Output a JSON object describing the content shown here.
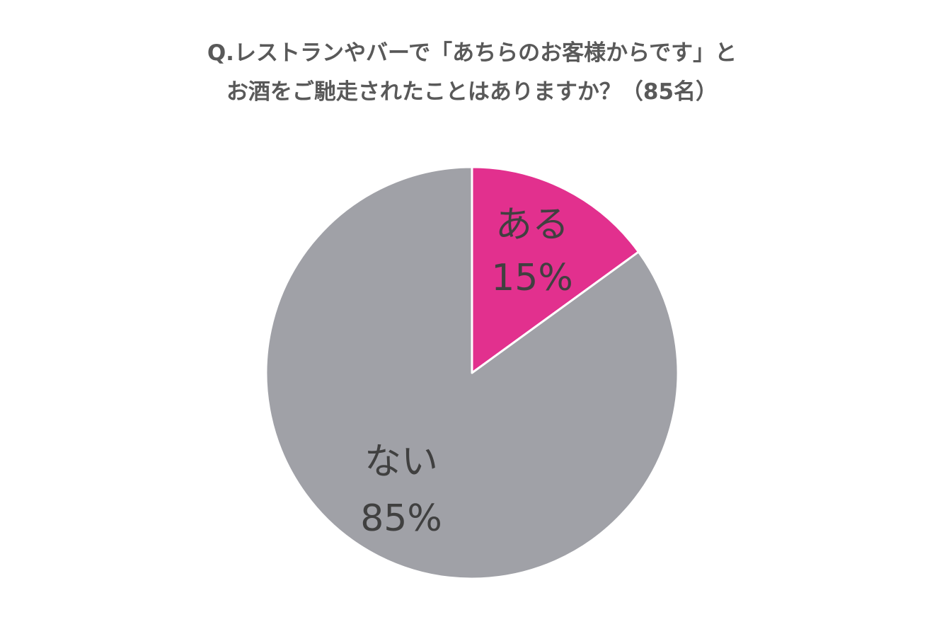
{
  "chart_data": {
    "type": "pie",
    "title": "Q.レストランやバーで「あちらのお客様からです」とお酒をご馳走されたことはありますか？（85名）",
    "title_lines": [
      "Q.レストランやバーで「あちらのお客様からです」と",
      "お酒をご馳走されたことはありますか？（85名）"
    ],
    "slices": [
      {
        "label": "ある",
        "value": 15,
        "value_label": "15%",
        "color": "#E2308E"
      },
      {
        "label": "ない",
        "value": 85,
        "value_label": "85%",
        "color": "#A0A1A7"
      }
    ],
    "legend": "none",
    "slice_border_color": "#FFFFFF"
  }
}
